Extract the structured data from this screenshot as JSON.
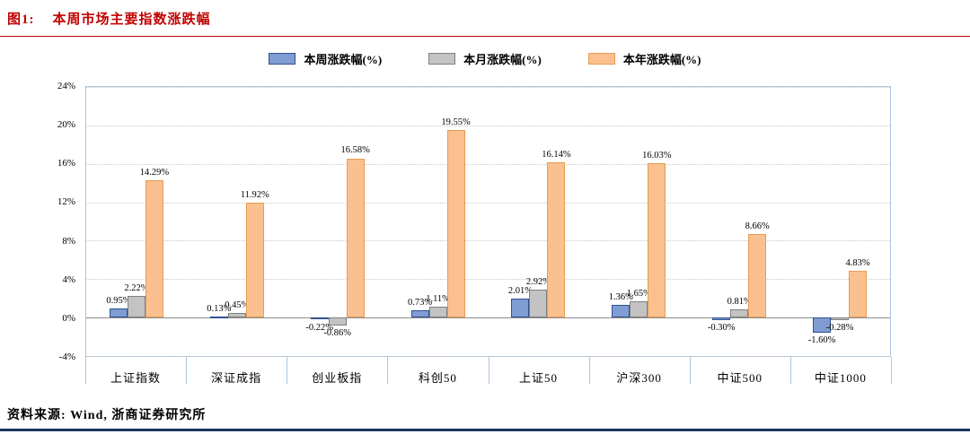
{
  "header": {
    "figure_label": "图1:",
    "title": "本周市场主要指数涨跌幅"
  },
  "footer": {
    "source": "资料来源: Wind, 浙商证券研究所"
  },
  "colors": {
    "title": "#c00000",
    "header_rule": "#c00000",
    "bottom_rule": "#17375e",
    "plot_border": "#a9c6df",
    "gridline": "#c9c9c9",
    "zero_line": "#8c8c8c"
  },
  "chart_data": {
    "type": "bar",
    "title": "本周市场主要指数涨跌幅",
    "categories": [
      "上证指数",
      "深证成指",
      "创业板指",
      "科创50",
      "上证50",
      "沪深300",
      "中证500",
      "中证1000"
    ],
    "series": [
      {
        "name": "本周涨跌幅(%)",
        "color": "#7f9dd3",
        "border": "#31508f",
        "values": [
          0.95,
          0.13,
          -0.22,
          0.73,
          2.01,
          1.36,
          -0.3,
          -1.6
        ],
        "labels": [
          "0.95%",
          "0.13%",
          "-0.22%",
          "0.73%",
          "2.01%",
          "1.36%",
          "-0.30%",
          "-1.60%"
        ]
      },
      {
        "name": "本月涨跌幅(%)",
        "color": "#c3c3c3",
        "border": "#7f7f7f",
        "values": [
          2.22,
          0.45,
          -0.86,
          1.11,
          2.92,
          1.65,
          0.81,
          -0.28
        ],
        "labels": [
          "2.22%",
          "0.45%",
          "-0.86%",
          "1.11%",
          "2.92%",
          "1.65%",
          "0.81%",
          "-0.28%"
        ]
      },
      {
        "name": "本年涨跌幅(%)",
        "color": "#fac090",
        "border": "#e99b51",
        "values": [
          14.29,
          11.92,
          16.58,
          19.55,
          16.14,
          16.03,
          8.66,
          4.83
        ],
        "labels": [
          "14.29%",
          "11.92%",
          "16.58%",
          "19.55%",
          "16.14%",
          "16.03%",
          "8.66%",
          "4.83%"
        ]
      }
    ],
    "ylim": [
      -4,
      24
    ],
    "yticks": [
      {
        "value": 24,
        "label": "24%"
      },
      {
        "value": 20,
        "label": "20%"
      },
      {
        "value": 16,
        "label": "16%"
      },
      {
        "value": 12,
        "label": "12%"
      },
      {
        "value": 8,
        "label": "8%"
      },
      {
        "value": 4,
        "label": "4%"
      },
      {
        "value": 0,
        "label": "0%"
      },
      {
        "value": -4,
        "label": "-4%"
      }
    ],
    "grid": "horizontal-dotted",
    "legend_position": "top-center"
  }
}
